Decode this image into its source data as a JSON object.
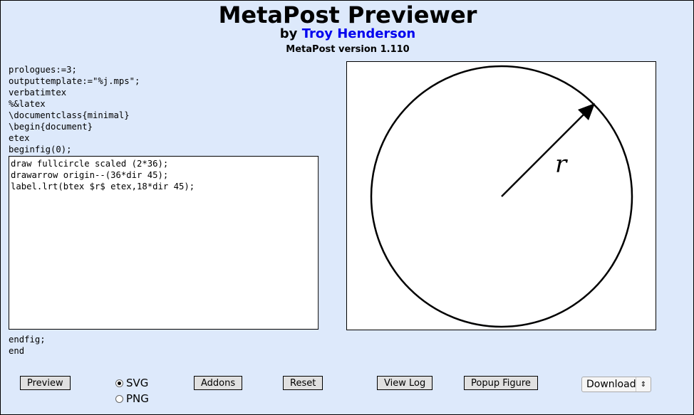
{
  "header": {
    "title": "MetaPost Previewer",
    "by": "by",
    "author": "Troy Henderson",
    "version": "MetaPost version 1.110"
  },
  "code": {
    "preamble": "prologues:=3;\noutputtemplate:=\"%j.mps\";\nverbatimtex\n%&latex\n\\documentclass{minimal}\n\\begin{document}\netex\nbeginfig(0);",
    "editor": "draw fullcircle scaled (2*36);\ndrawarrow origin--(36*dir 45);\nlabel.lrt(btex $r$ etex,18*dir 45);",
    "postamble": "endfig;\nend"
  },
  "figure": {
    "label": "r"
  },
  "controls": {
    "preview": "Preview",
    "svg": "SVG",
    "png": "PNG",
    "format_selected": "SVG",
    "addons": "Addons",
    "reset": "Reset",
    "view_log": "View Log",
    "popup": "Popup Figure",
    "download": "Download"
  }
}
